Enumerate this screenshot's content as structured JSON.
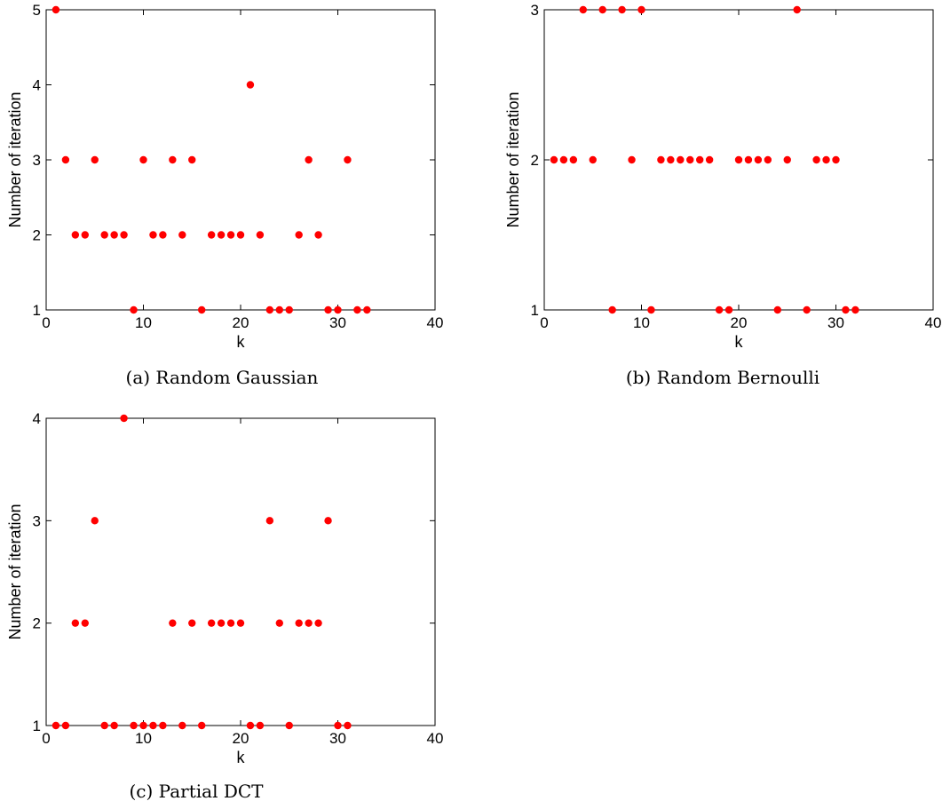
{
  "chart_data": [
    {
      "type": "scatter",
      "caption": "(a) Random Gaussian",
      "xlabel": "k",
      "ylabel": "Number of iteration",
      "xlim": [
        0,
        40
      ],
      "ylim": [
        1,
        5
      ],
      "xticks": [
        0,
        10,
        20,
        30,
        40
      ],
      "yticks": [
        1,
        2,
        3,
        4,
        5
      ],
      "grid": false,
      "marker_color": "#ff0000",
      "x": [
        1,
        2,
        3,
        4,
        5,
        6,
        7,
        8,
        9,
        10,
        11,
        12,
        13,
        14,
        15,
        16,
        17,
        18,
        19,
        20,
        21,
        22,
        23,
        24,
        25,
        26,
        27,
        28,
        29,
        30,
        31,
        32,
        33
      ],
      "y": [
        5,
        3,
        2,
        2,
        3,
        2,
        2,
        2,
        1,
        3,
        2,
        2,
        3,
        2,
        3,
        1,
        2,
        2,
        2,
        2,
        4,
        2,
        1,
        1,
        1,
        2,
        3,
        2,
        1,
        1,
        3,
        1,
        1
      ]
    },
    {
      "type": "scatter",
      "caption": "(b) Random Bernoulli",
      "xlabel": "k",
      "ylabel": "Number of iteration",
      "xlim": [
        0,
        40
      ],
      "ylim": [
        1,
        3
      ],
      "xticks": [
        0,
        10,
        20,
        30,
        40
      ],
      "yticks": [
        1,
        2,
        3
      ],
      "grid": false,
      "marker_color": "#ff0000",
      "x": [
        1,
        2,
        3,
        4,
        5,
        6,
        7,
        8,
        9,
        10,
        11,
        12,
        13,
        14,
        15,
        16,
        17,
        18,
        19,
        20,
        21,
        22,
        23,
        24,
        25,
        26,
        27,
        28,
        29,
        30,
        31,
        32
      ],
      "y": [
        2,
        2,
        2,
        3,
        2,
        3,
        1,
        3,
        2,
        3,
        1,
        2,
        2,
        2,
        2,
        2,
        2,
        1,
        1,
        2,
        2,
        2,
        2,
        1,
        2,
        3,
        1,
        2,
        2,
        2,
        1,
        1
      ]
    },
    {
      "type": "scatter",
      "caption": "(c) Partial DCT",
      "xlabel": "k",
      "ylabel": "Number of iteration",
      "xlim": [
        0,
        40
      ],
      "ylim": [
        1,
        4
      ],
      "xticks": [
        0,
        10,
        20,
        30,
        40
      ],
      "yticks": [
        1,
        2,
        3,
        4
      ],
      "grid": false,
      "marker_color": "#ff0000",
      "x": [
        1,
        2,
        3,
        4,
        5,
        6,
        7,
        8,
        9,
        10,
        11,
        12,
        13,
        14,
        15,
        16,
        17,
        18,
        19,
        20,
        21,
        22,
        23,
        24,
        25,
        26,
        27,
        28,
        29,
        30,
        31
      ],
      "y": [
        1,
        1,
        2,
        2,
        3,
        1,
        1,
        4,
        1,
        1,
        1,
        1,
        2,
        1,
        2,
        1,
        2,
        2,
        2,
        2,
        1,
        1,
        3,
        2,
        1,
        2,
        2,
        2,
        3,
        1,
        1
      ]
    }
  ]
}
